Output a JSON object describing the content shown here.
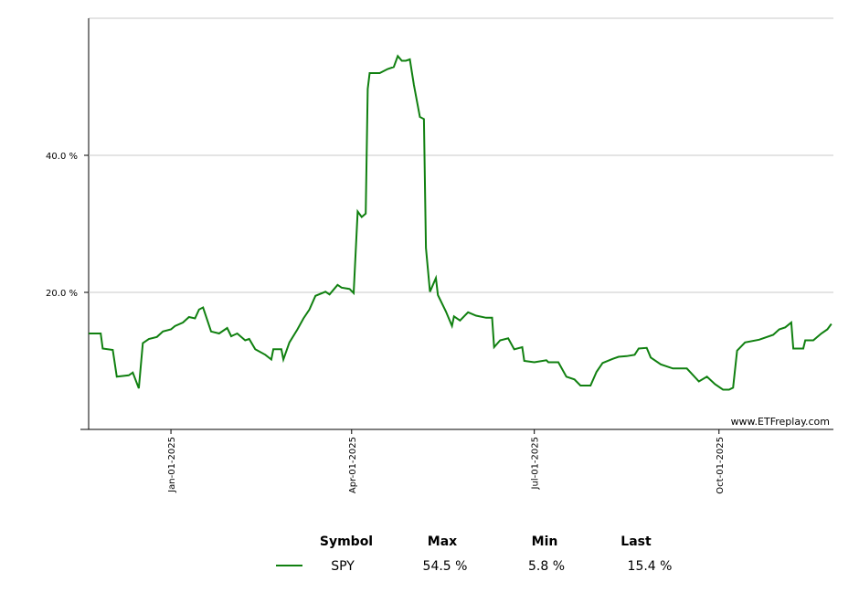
{
  "chart_data": {
    "type": "line",
    "watermark": "www.ETFreplay.com",
    "x": [
      "2024-11-21",
      "2024-11-27",
      "2024-11-28",
      "2024-12-03",
      "2024-12-05",
      "2024-12-11",
      "2024-12-13",
      "2024-12-16",
      "2024-12-18",
      "2024-12-21",
      "2024-12-25",
      "2024-12-28",
      "2025-01-01",
      "2025-01-03",
      "2025-01-07",
      "2025-01-10",
      "2025-01-13",
      "2025-01-15",
      "2025-01-17",
      "2025-01-21",
      "2025-01-25",
      "2025-01-29",
      "2025-01-31",
      "2025-02-03",
      "2025-02-07",
      "2025-02-09",
      "2025-02-12",
      "2025-02-17",
      "2025-02-20",
      "2025-02-21",
      "2025-02-25",
      "2025-02-26",
      "2025-03-01",
      "2025-03-05",
      "2025-03-08",
      "2025-03-11",
      "2025-03-14",
      "2025-03-19",
      "2025-03-21",
      "2025-03-25",
      "2025-03-27",
      "2025-03-31",
      "2025-04-02",
      "2025-04-04",
      "2025-04-06",
      "2025-04-08",
      "2025-04-09",
      "2025-04-10",
      "2025-04-15",
      "2025-04-19",
      "2025-04-22",
      "2025-04-24",
      "2025-04-26",
      "2025-04-28",
      "2025-04-30",
      "2025-05-02",
      "2025-05-05",
      "2025-05-07",
      "2025-05-08",
      "2025-05-10",
      "2025-05-13",
      "2025-05-14",
      "2025-05-18",
      "2025-05-21",
      "2025-05-22",
      "2025-05-25",
      "2025-05-29",
      "2025-06-02",
      "2025-06-07",
      "2025-06-10",
      "2025-06-11",
      "2025-06-14",
      "2025-06-18",
      "2025-06-21",
      "2025-06-25",
      "2025-06-26",
      "2025-07-01",
      "2025-07-07",
      "2025-07-08",
      "2025-07-13",
      "2025-07-17",
      "2025-07-21",
      "2025-07-24",
      "2025-07-29",
      "2025-08-01",
      "2025-08-04",
      "2025-08-09",
      "2025-08-12",
      "2025-08-16",
      "2025-08-20",
      "2025-08-22",
      "2025-08-26",
      "2025-08-28",
      "2025-09-02",
      "2025-09-08",
      "2025-09-15",
      "2025-09-21",
      "2025-09-25",
      "2025-09-29",
      "2025-10-03",
      "2025-10-06",
      "2025-10-08",
      "2025-10-10",
      "2025-10-14",
      "2025-10-21",
      "2025-10-28",
      "2025-10-31",
      "2025-11-03",
      "2025-11-06",
      "2025-11-07",
      "2025-11-12",
      "2025-11-13",
      "2025-11-17",
      "2025-11-21",
      "2025-11-24",
      "2025-11-26"
    ],
    "series": [
      {
        "name": "SPY",
        "color": "#108010",
        "values": [
          14.0,
          14.0,
          11.8,
          11.6,
          7.7,
          7.9,
          8.3,
          6.0,
          12.6,
          13.2,
          13.5,
          14.3,
          14.6,
          15.1,
          15.6,
          16.4,
          16.2,
          17.5,
          17.8,
          14.3,
          14.0,
          14.8,
          13.6,
          14.0,
          13.0,
          13.2,
          11.7,
          10.9,
          10.2,
          11.7,
          11.7,
          10.2,
          12.7,
          14.6,
          16.2,
          17.5,
          19.5,
          20.1,
          19.7,
          21.1,
          20.7,
          20.5,
          19.9,
          31.8,
          31.0,
          31.5,
          49.7,
          52.0,
          52.0,
          52.6,
          52.9,
          54.5,
          53.8,
          53.8,
          54.0,
          50.3,
          45.6,
          45.3,
          26.5,
          20.1,
          22.1,
          19.6,
          17.2,
          15.1,
          16.5,
          15.9,
          17.1,
          16.6,
          16.3,
          16.3,
          12.0,
          13.0,
          13.3,
          11.7,
          12.0,
          10.0,
          9.8,
          10.1,
          9.8,
          9.8,
          7.7,
          7.3,
          6.4,
          6.4,
          8.4,
          9.7,
          10.3,
          10.6,
          10.7,
          10.9,
          11.8,
          11.9,
          10.5,
          9.5,
          8.9,
          8.9,
          7.0,
          7.7,
          6.6,
          5.8,
          5.8,
          6.1,
          11.5,
          12.7,
          13.1,
          13.8,
          14.6,
          14.9,
          15.6,
          11.8,
          11.8,
          13.0,
          13.0,
          14.0,
          14.6,
          15.4
        ]
      }
    ],
    "xlim": [
      "2024-11-21",
      "2025-11-27"
    ],
    "xticks": [
      {
        "value": "2025-01-01",
        "label": "Jan-01-2025"
      },
      {
        "value": "2025-04-01",
        "label": "Apr-01-2025"
      },
      {
        "value": "2025-07-01",
        "label": "Jul-01-2025"
      },
      {
        "value": "2025-10-01",
        "label": "Oct-01-2025"
      }
    ],
    "ylim": [
      0,
      60
    ],
    "yticks": [
      {
        "value": 20,
        "label": "20.0 %"
      },
      {
        "value": 40,
        "label": "40.0 %"
      }
    ],
    "grid": true,
    "summary": {
      "columns": [
        "Symbol",
        "Max",
        "Min",
        "Last"
      ],
      "values": [
        "54.5 %",
        "5.8 %",
        "15.4 %"
      ]
    }
  }
}
